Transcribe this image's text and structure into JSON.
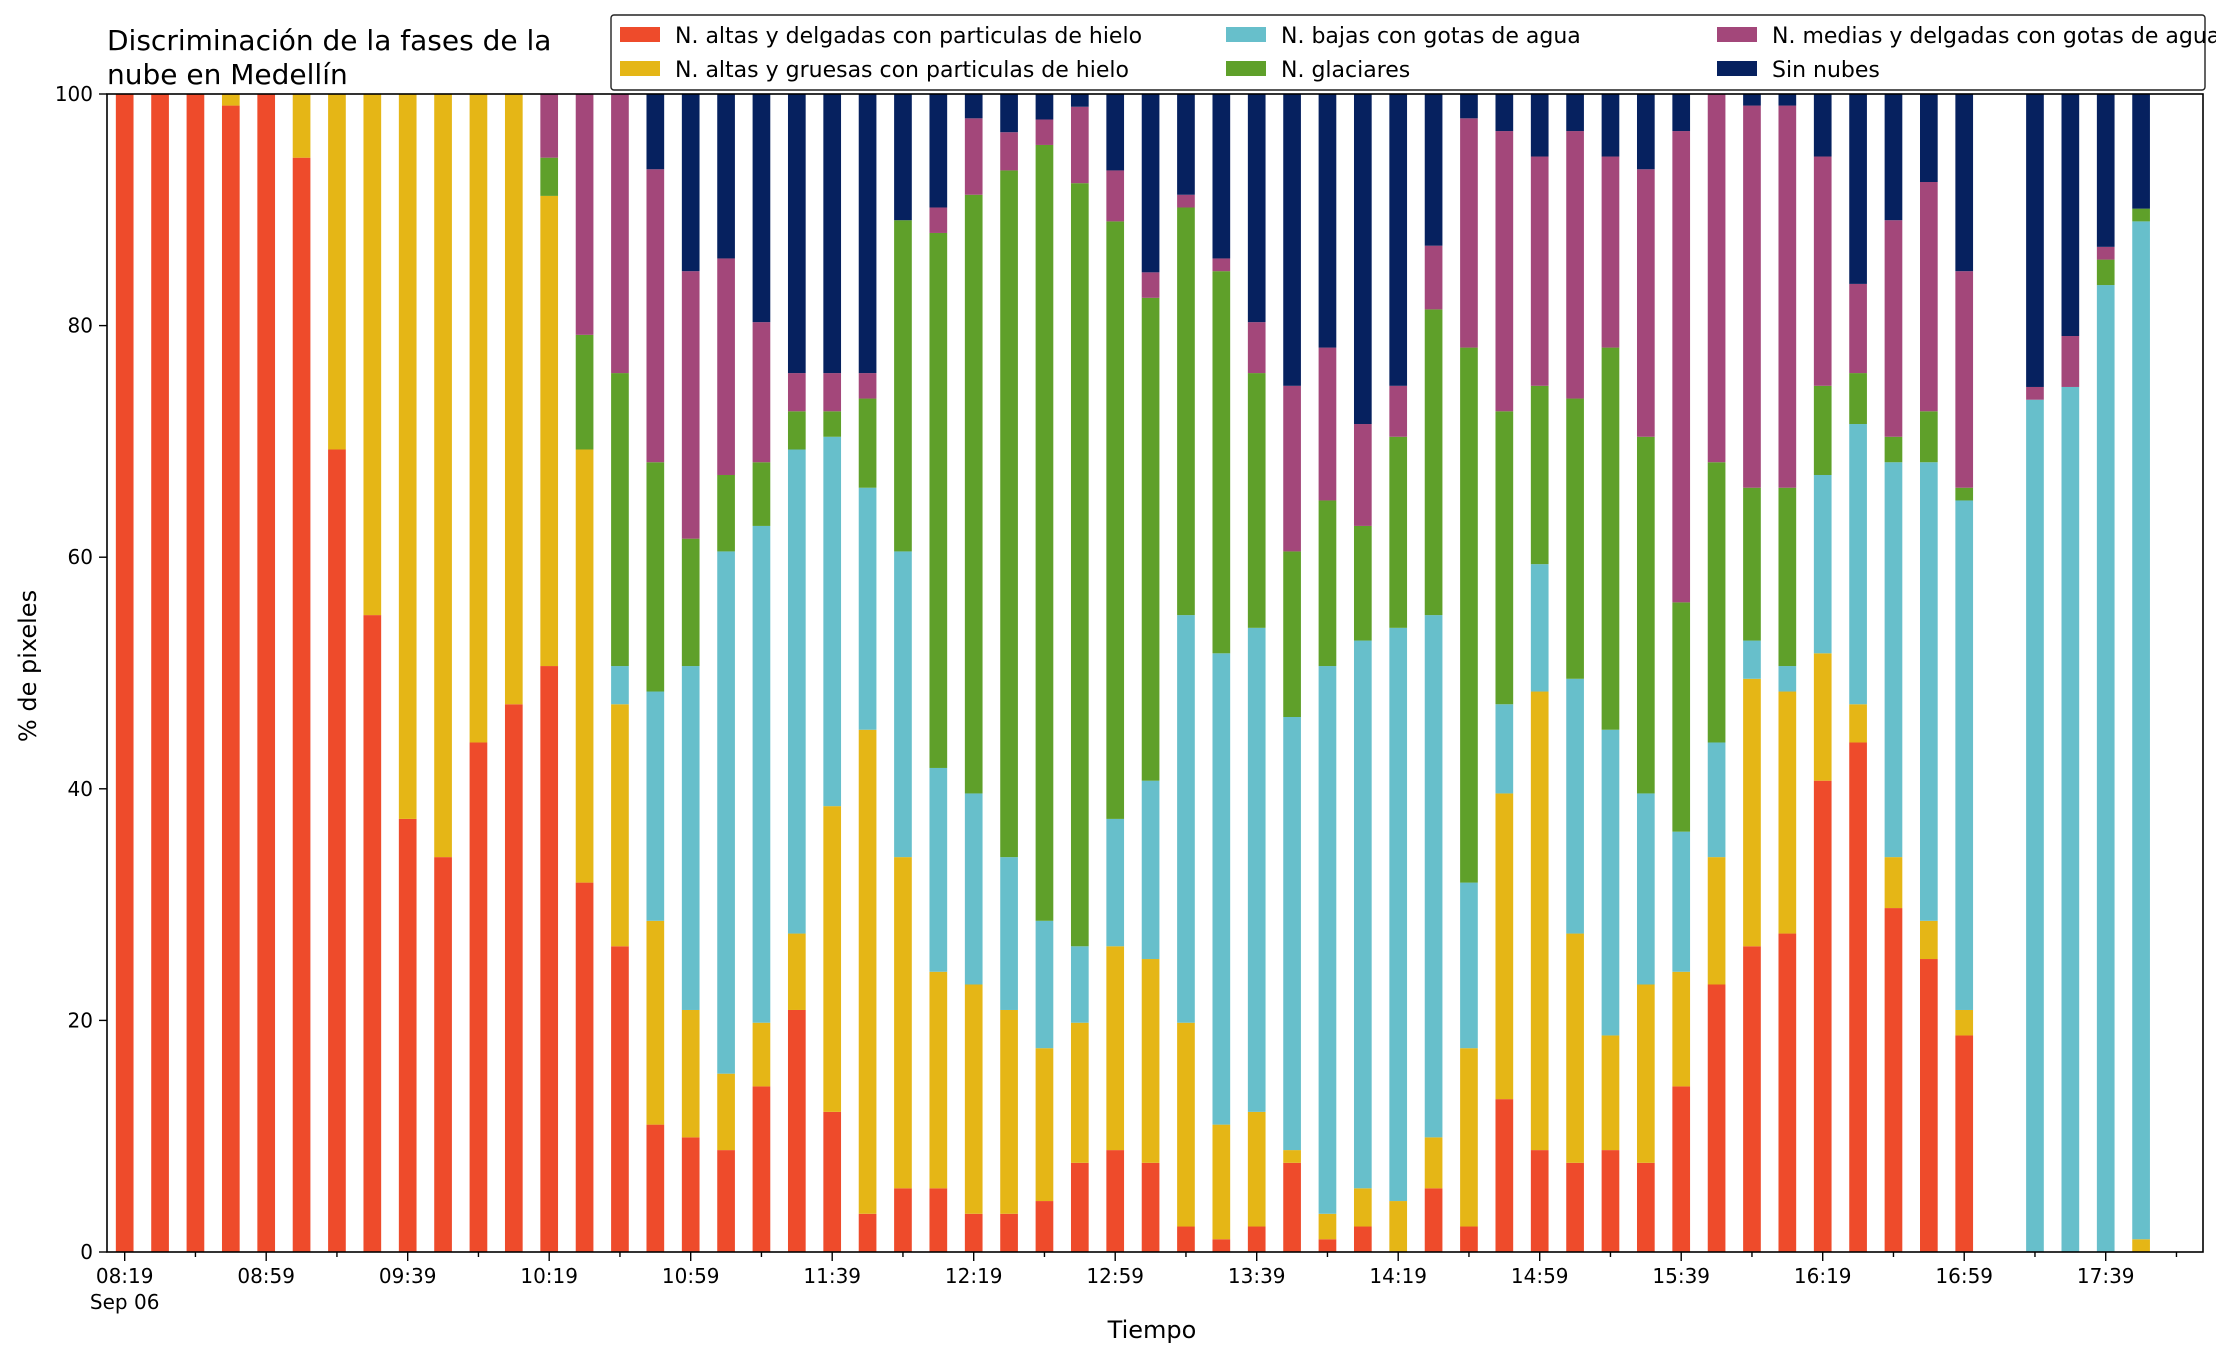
{
  "chart_data": {
    "type": "bar",
    "stacked": true,
    "title_lines": [
      "Discriminación de la fases de la",
      "nube en Medellín"
    ],
    "xlabel": "Tiempo",
    "ylabel": "% de pixeles",
    "ylim": [
      0,
      100
    ],
    "yticks": [
      0,
      20,
      40,
      60,
      80,
      100
    ],
    "grid": false,
    "legend_position": "top-right",
    "x_tick_labels": [
      "08:19",
      "08:59",
      "09:39",
      "10:19",
      "10:59",
      "11:39",
      "12:19",
      "12:59",
      "13:39",
      "14:19",
      "14:59",
      "15:39",
      "16:19",
      "16:59",
      "17:39"
    ],
    "x_date_label": "Sep 06",
    "x_start": "08:19",
    "x_interval_minutes": 10,
    "n_slots": 59,
    "series": [
      {
        "name": "N. altas y delgadas con particulas de hielo",
        "color": "#ee4b2b"
      },
      {
        "name": "N. altas y gruesas con particulas de hielo",
        "color": "#e5b616"
      },
      {
        "name": "N. bajas con gotas de agua",
        "color": "#67bfcb"
      },
      {
        "name": "N. glaciares",
        "color": "#5fa02a"
      },
      {
        "name": "N. medias y delgadas con gotas de agua",
        "color": "#a3477a"
      },
      {
        "name": "Sin nubes",
        "color": "#06215f"
      }
    ],
    "bars": [
      {
        "time": "08:19",
        "values": [
          100,
          0,
          0,
          0,
          0,
          0
        ]
      },
      {
        "time": "08:29",
        "values": [
          100,
          0,
          0,
          0,
          0,
          0
        ]
      },
      {
        "time": "08:39",
        "values": [
          100,
          0,
          0,
          0,
          0,
          0
        ]
      },
      {
        "time": "08:49",
        "values": [
          99,
          1,
          0,
          0,
          0,
          0
        ]
      },
      {
        "time": "08:59",
        "values": [
          100,
          0,
          0,
          0,
          0,
          0
        ]
      },
      {
        "time": "09:09",
        "values": [
          94.5,
          5.5,
          0,
          0,
          0,
          0
        ]
      },
      {
        "time": "09:19",
        "values": [
          69.3,
          30.7,
          0,
          0,
          0,
          0
        ]
      },
      {
        "time": "09:29",
        "values": [
          55,
          45,
          0,
          0,
          0,
          0
        ]
      },
      {
        "time": "09:39",
        "values": [
          37.4,
          62.6,
          0,
          0,
          0,
          0
        ]
      },
      {
        "time": "09:49",
        "values": [
          34.1,
          65.9,
          0,
          0,
          0,
          0
        ]
      },
      {
        "time": "09:59",
        "values": [
          44,
          56,
          0,
          0,
          0,
          0
        ]
      },
      {
        "time": "10:09",
        "values": [
          47.3,
          52.7,
          0,
          0,
          0,
          0
        ]
      },
      {
        "time": "10:19",
        "values": [
          50.6,
          40.6,
          0,
          3.3,
          5.5,
          0
        ]
      },
      {
        "time": "10:29",
        "values": [
          31.9,
          37.4,
          0,
          9.9,
          20.8,
          0
        ]
      },
      {
        "time": "10:39",
        "values": [
          26.4,
          20.9,
          3.3,
          25.3,
          24.1,
          0
        ]
      },
      {
        "time": "10:49",
        "values": [
          11,
          17.6,
          19.8,
          19.8,
          25.3,
          6.5
        ]
      },
      {
        "time": "10:59",
        "values": [
          9.9,
          11,
          29.7,
          11,
          23.1,
          15.3
        ]
      },
      {
        "time": "11:09",
        "values": [
          8.8,
          6.6,
          45.1,
          6.6,
          18.7,
          14.2
        ]
      },
      {
        "time": "11:19",
        "values": [
          14.3,
          5.5,
          42.9,
          5.5,
          12.1,
          19.7
        ]
      },
      {
        "time": "11:29",
        "values": [
          20.9,
          6.6,
          41.8,
          3.3,
          3.3,
          24.1
        ]
      },
      {
        "time": "11:39",
        "values": [
          12.1,
          26.4,
          31.9,
          2.2,
          3.3,
          24.1
        ]
      },
      {
        "time": "11:49",
        "values": [
          3.3,
          41.8,
          20.9,
          7.7,
          2.2,
          24.1
        ]
      },
      {
        "time": "11:59",
        "values": [
          5.5,
          28.6,
          26.4,
          28.6,
          0,
          10.9
        ]
      },
      {
        "time": "12:09",
        "values": [
          5.5,
          18.7,
          17.6,
          46.2,
          2.2,
          9.8
        ]
      },
      {
        "time": "12:19",
        "values": [
          3.3,
          19.8,
          16.5,
          51.7,
          6.6,
          2.1
        ]
      },
      {
        "time": "12:29",
        "values": [
          3.3,
          17.6,
          13.2,
          59.3,
          3.3,
          3.3
        ]
      },
      {
        "time": "12:39",
        "values": [
          4.4,
          13.2,
          11,
          67,
          2.2,
          2.2
        ]
      },
      {
        "time": "12:49",
        "values": [
          7.7,
          12.1,
          6.6,
          65.9,
          6.6,
          1.1
        ]
      },
      {
        "time": "12:59",
        "values": [
          8.8,
          17.6,
          11,
          51.6,
          4.4,
          6.6
        ]
      },
      {
        "time": "13:09",
        "values": [
          7.7,
          17.6,
          15.4,
          41.7,
          2.2,
          15.4
        ]
      },
      {
        "time": "13:19",
        "values": [
          2.2,
          17.6,
          35.2,
          35.2,
          1.1,
          8.7
        ]
      },
      {
        "time": "13:29",
        "values": [
          1.1,
          9.9,
          40.7,
          33,
          1.1,
          14.2
        ]
      },
      {
        "time": "13:39",
        "values": [
          2.2,
          9.9,
          41.8,
          22,
          4.4,
          19.7
        ]
      },
      {
        "time": "13:49",
        "values": [
          7.7,
          1.1,
          37.4,
          14.3,
          14.3,
          25.2
        ]
      },
      {
        "time": "13:59",
        "values": [
          1.1,
          2.2,
          47.3,
          14.3,
          13.2,
          21.9
        ]
      },
      {
        "time": "14:09",
        "values": [
          2.2,
          3.3,
          47.3,
          9.9,
          8.8,
          28.5
        ]
      },
      {
        "time": "14:19",
        "values": [
          0,
          4.4,
          49.5,
          16.5,
          4.4,
          25.2
        ]
      },
      {
        "time": "14:29",
        "values": [
          5.5,
          4.4,
          45.1,
          26.4,
          5.5,
          13.1
        ]
      },
      {
        "time": "14:39",
        "values": [
          2.2,
          15.4,
          14.3,
          46.2,
          19.8,
          2.1
        ]
      },
      {
        "time": "14:49",
        "values": [
          13.2,
          26.4,
          7.7,
          25.3,
          24.2,
          3.2
        ]
      },
      {
        "time": "14:59",
        "values": [
          8.8,
          39.6,
          11,
          15.4,
          19.8,
          5.4
        ]
      },
      {
        "time": "15:09",
        "values": [
          7.7,
          19.8,
          22,
          24.2,
          23.1,
          3.2
        ]
      },
      {
        "time": "15:19",
        "values": [
          8.8,
          9.9,
          26.4,
          33,
          16.5,
          5.4
        ]
      },
      {
        "time": "15:29",
        "values": [
          7.7,
          15.4,
          16.5,
          30.8,
          23.1,
          6.5
        ]
      },
      {
        "time": "15:39",
        "values": [
          14.3,
          9.9,
          12.1,
          19.8,
          40.7,
          3.2
        ]
      },
      {
        "time": "15:49",
        "values": [
          23.1,
          11,
          9.9,
          24.2,
          31.8,
          0
        ]
      },
      {
        "time": "15:59",
        "values": [
          26.4,
          23.1,
          3.3,
          13.2,
          33,
          1
        ]
      },
      {
        "time": "16:09",
        "values": [
          27.5,
          20.9,
          2.2,
          15.4,
          33,
          1
        ]
      },
      {
        "time": "16:19",
        "values": [
          40.7,
          11,
          15.4,
          7.7,
          19.8,
          5.4
        ]
      },
      {
        "time": "16:29",
        "values": [
          44,
          3.3,
          24.2,
          4.4,
          7.7,
          16.4
        ]
      },
      {
        "time": "16:39",
        "values": [
          29.7,
          4.4,
          34.1,
          2.2,
          18.7,
          10.9
        ]
      },
      {
        "time": "16:49",
        "values": [
          25.3,
          3.3,
          39.6,
          4.4,
          19.8,
          7.6
        ]
      },
      {
        "time": "16:59",
        "values": [
          18.7,
          2.2,
          44,
          1.1,
          18.7,
          15.3
        ]
      },
      {
        "time": "17:09",
        "values": [
          0,
          0,
          0,
          0,
          0,
          0
        ]
      },
      {
        "time": "17:19",
        "values": [
          0,
          0,
          73.6,
          0,
          1.1,
          25.3
        ]
      },
      {
        "time": "17:29",
        "values": [
          0,
          0,
          74.7,
          0,
          4.4,
          20.9
        ]
      },
      {
        "time": "17:39",
        "values": [
          0,
          0,
          83.5,
          2.2,
          1.1,
          13.2
        ]
      },
      {
        "time": "17:49",
        "values": [
          0,
          1.1,
          87.9,
          1.1,
          0,
          9.9
        ]
      }
    ]
  }
}
